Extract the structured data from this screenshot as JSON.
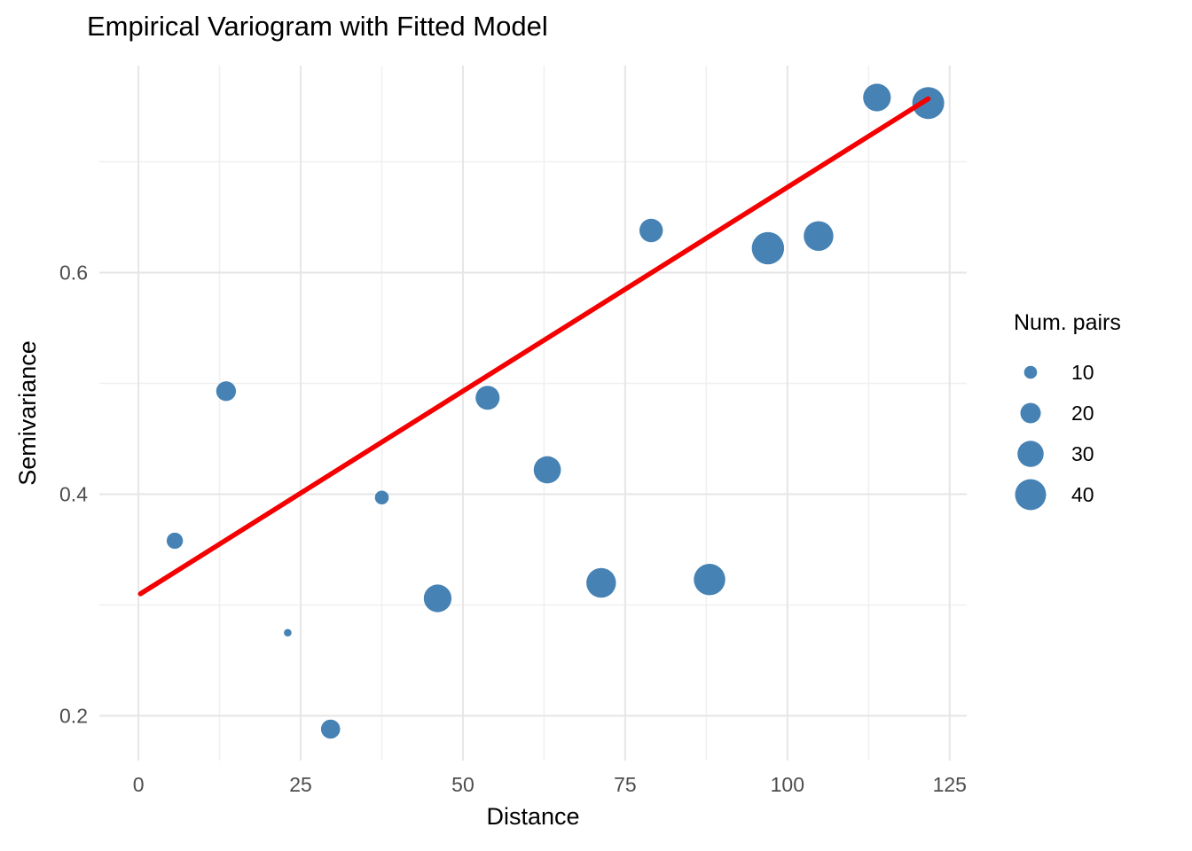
{
  "chart_data": {
    "type": "scatter",
    "title": "Empirical Variogram with Fitted Model",
    "xlabel": "Distance",
    "ylabel": "Semivariance",
    "xlim": [
      -6.03,
      127.63
    ],
    "ylim": [
      0.1596,
      0.7868
    ],
    "grid": true,
    "x_ticks": [
      {
        "value": 0,
        "label": "0"
      },
      {
        "value": 25,
        "label": "25"
      },
      {
        "value": 50,
        "label": "50"
      },
      {
        "value": 75,
        "label": "75"
      },
      {
        "value": 100,
        "label": "100"
      },
      {
        "value": 125,
        "label": "125"
      }
    ],
    "y_ticks": [
      {
        "value": 0.2,
        "label": "0.2"
      },
      {
        "value": 0.4,
        "label": "0.4"
      },
      {
        "value": 0.6,
        "label": "0.6"
      }
    ],
    "x_minor_ticks": [
      12.5,
      37.5,
      62.5,
      87.5,
      112.5
    ],
    "y_minor_ticks": [
      0.3,
      0.5,
      0.7
    ],
    "point_color": "#4682B4",
    "line_color": "#F40000",
    "axis_text_color": "#4D4D4D",
    "series": [
      {
        "name": "empirical-variogram-points",
        "type": "points",
        "points": [
          {
            "distance": 5.6,
            "semivariance": 0.358,
            "num_pairs": 14
          },
          {
            "distance": 13.5,
            "semivariance": 0.493,
            "num_pairs": 19
          },
          {
            "distance": 23.0,
            "semivariance": 0.275,
            "num_pairs": 5
          },
          {
            "distance": 29.6,
            "semivariance": 0.188,
            "num_pairs": 18
          },
          {
            "distance": 37.5,
            "semivariance": 0.397,
            "num_pairs": 11
          },
          {
            "distance": 46.1,
            "semivariance": 0.306,
            "num_pairs": 33
          },
          {
            "distance": 53.8,
            "semivariance": 0.487,
            "num_pairs": 26
          },
          {
            "distance": 63.0,
            "semivariance": 0.422,
            "num_pairs": 32
          },
          {
            "distance": 71.3,
            "semivariance": 0.32,
            "num_pairs": 37
          },
          {
            "distance": 79.0,
            "semivariance": 0.638,
            "num_pairs": 25
          },
          {
            "distance": 88.0,
            "semivariance": 0.323,
            "num_pairs": 41
          },
          {
            "distance": 97.0,
            "semivariance": 0.622,
            "num_pairs": 43
          },
          {
            "distance": 104.8,
            "semivariance": 0.633,
            "num_pairs": 37
          },
          {
            "distance": 113.8,
            "semivariance": 0.758,
            "num_pairs": 33
          },
          {
            "distance": 121.7,
            "semivariance": 0.753,
            "num_pairs": 42
          }
        ]
      },
      {
        "name": "fitted-model-line",
        "type": "line",
        "model": "linear",
        "intercept": 0.309,
        "slope": 0.00368,
        "x_start": 0.3,
        "x_end": 121.7
      }
    ],
    "legend": {
      "title": "Num. pairs",
      "position": "right",
      "entries": [
        {
          "value": 10,
          "label": "10"
        },
        {
          "value": 20,
          "label": "20"
        },
        {
          "value": 30,
          "label": "30"
        },
        {
          "value": 40,
          "label": "40"
        }
      ]
    }
  }
}
